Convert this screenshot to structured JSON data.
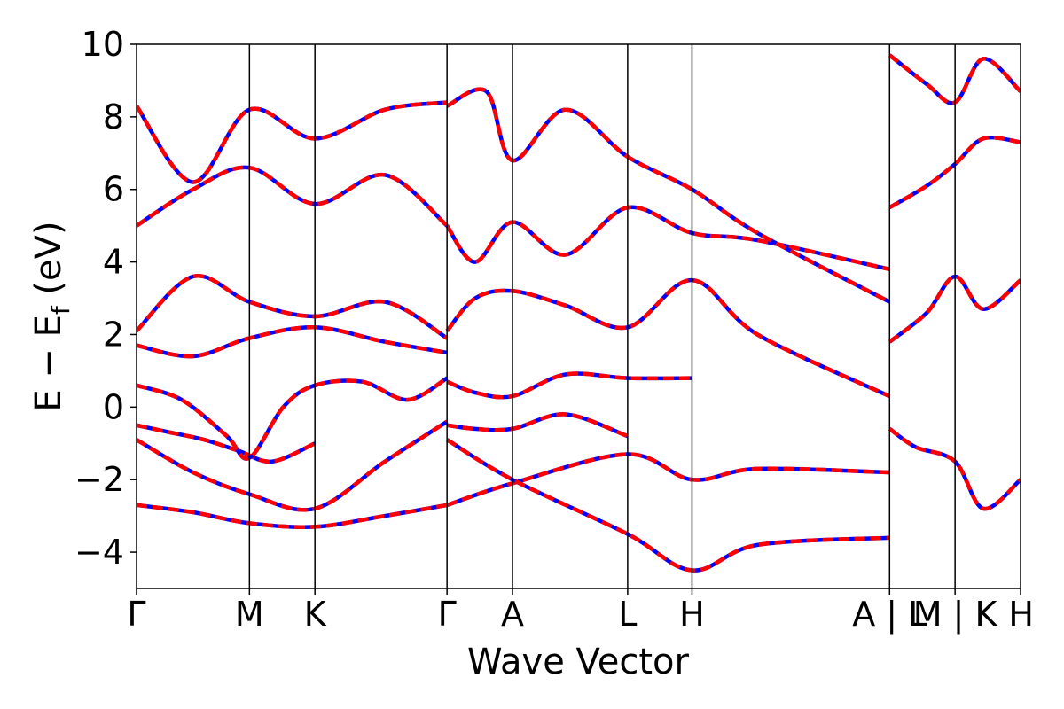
{
  "chart_data": {
    "type": "line",
    "title": "",
    "xlabel": "Wave Vector",
    "ylabel": "E − E",
    "ylabel_subscript": "f",
    "ylabel_unit": " (eV)",
    "ylim": [
      -5,
      10
    ],
    "y_ticks": [
      -4,
      -2,
      0,
      2,
      4,
      6,
      8,
      10
    ],
    "y_tick_labels": [
      "−4",
      "−2",
      "0",
      "2",
      "4",
      "6",
      "8",
      "10"
    ],
    "x_ticks": [
      0,
      1.0,
      1.58,
      2.75,
      3.33,
      4.35,
      4.92,
      6.67,
      7.25,
      7.83
    ],
    "x_tick_labels": [
      "Γ",
      "M",
      "K",
      "Γ",
      "A",
      "L",
      "H",
      "A | L",
      "M | K",
      "H"
    ],
    "xlim": [
      0,
      7.83
    ],
    "grid": false,
    "line_colors": {
      "primary": "#ff0000",
      "overlay": "#0000ff"
    },
    "series": [
      {
        "x": [
          0,
          0.3,
          0.6,
          0.9,
          1.2,
          1.58
        ],
        "y": [
          -0.5,
          -0.7,
          -0.9,
          -1.2,
          -1.5,
          -1.0
        ]
      },
      {
        "x": [
          0,
          0.4,
          0.8,
          1.0,
          1.3,
          1.58,
          2.0,
          2.4,
          2.75
        ],
        "y": [
          0.6,
          0.2,
          -0.8,
          -1.4,
          0.0,
          0.6,
          0.7,
          0.2,
          0.8
        ]
      },
      {
        "x": [
          0,
          0.5,
          1.0,
          1.58,
          2.2,
          2.75
        ],
        "y": [
          -2.7,
          -2.9,
          -3.2,
          -3.3,
          -3.0,
          -2.7
        ]
      },
      {
        "x": [
          0,
          0.5,
          1.0,
          1.58,
          2.2,
          2.75
        ],
        "y": [
          -0.9,
          -1.8,
          -2.4,
          -2.8,
          -1.5,
          -0.4
        ]
      },
      {
        "x": [
          0,
          0.5,
          1.0,
          1.58,
          2.2,
          2.75
        ],
        "y": [
          1.7,
          1.4,
          1.9,
          2.2,
          1.8,
          1.5
        ]
      },
      {
        "x": [
          0,
          0.5,
          1.0,
          1.58,
          2.2,
          2.75
        ],
        "y": [
          2.1,
          3.6,
          2.9,
          2.5,
          2.9,
          1.9
        ]
      },
      {
        "x": [
          0,
          0.5,
          1.0,
          1.58,
          2.2,
          2.75
        ],
        "y": [
          5.0,
          6.0,
          6.6,
          5.6,
          6.4,
          5.0
        ]
      },
      {
        "x": [
          0,
          0.5,
          1.0,
          1.58,
          2.2,
          2.75
        ],
        "y": [
          8.3,
          6.2,
          8.2,
          7.4,
          8.2,
          8.4
        ]
      },
      {
        "x": [
          2.75,
          3.0,
          3.33,
          3.8,
          4.35
        ],
        "y": [
          -0.5,
          -0.6,
          -0.6,
          -0.2,
          -0.8
        ]
      },
      {
        "x": [
          2.75,
          3.0,
          3.33,
          3.8,
          4.35,
          4.92
        ],
        "y": [
          0.7,
          0.4,
          0.3,
          0.9,
          0.8,
          0.8
        ]
      },
      {
        "x": [
          2.75,
          3.33,
          4.35,
          4.92,
          5.5,
          6.67
        ],
        "y": [
          -2.7,
          -2.1,
          -1.3,
          -2.0,
          -1.7,
          -1.8
        ]
      },
      {
        "x": [
          2.75,
          3.33,
          4.35,
          4.92,
          5.5,
          6.67
        ],
        "y": [
          -0.9,
          -2.0,
          -3.5,
          -4.5,
          -3.8,
          -3.6
        ]
      },
      {
        "x": [
          2.75,
          3.0,
          3.33,
          3.8,
          4.35,
          4.92,
          5.5,
          6.67
        ],
        "y": [
          5.0,
          4.0,
          5.1,
          4.2,
          5.5,
          4.8,
          4.6,
          3.8
        ]
      },
      {
        "x": [
          2.75,
          3.0,
          3.33,
          3.8,
          4.35,
          4.92,
          5.5,
          6.67
        ],
        "y": [
          2.1,
          3.0,
          3.2,
          2.8,
          2.2,
          3.5,
          2.0,
          0.3
        ]
      },
      {
        "x": [
          2.75,
          3.1,
          3.33,
          3.8,
          4.35,
          4.92,
          5.5,
          6.67
        ],
        "y": [
          8.3,
          8.7,
          6.8,
          8.2,
          6.9,
          6.0,
          4.8,
          2.9
        ]
      },
      {
        "x": [
          6.67,
          6.9,
          7.25,
          7.5,
          7.83
        ],
        "y": [
          -0.6,
          -1.1,
          -1.5,
          -2.8,
          -2.0
        ]
      },
      {
        "x": [
          6.67,
          7.0,
          7.25,
          7.5,
          7.83
        ],
        "y": [
          1.8,
          2.6,
          3.6,
          2.7,
          3.5
        ]
      },
      {
        "x": [
          6.67,
          7.0,
          7.25,
          7.5,
          7.83
        ],
        "y": [
          5.5,
          6.1,
          6.7,
          7.4,
          7.3
        ]
      },
      {
        "x": [
          6.67,
          7.0,
          7.25,
          7.5,
          7.83
        ],
        "y": [
          9.7,
          8.9,
          8.4,
          9.6,
          8.7
        ]
      }
    ]
  }
}
